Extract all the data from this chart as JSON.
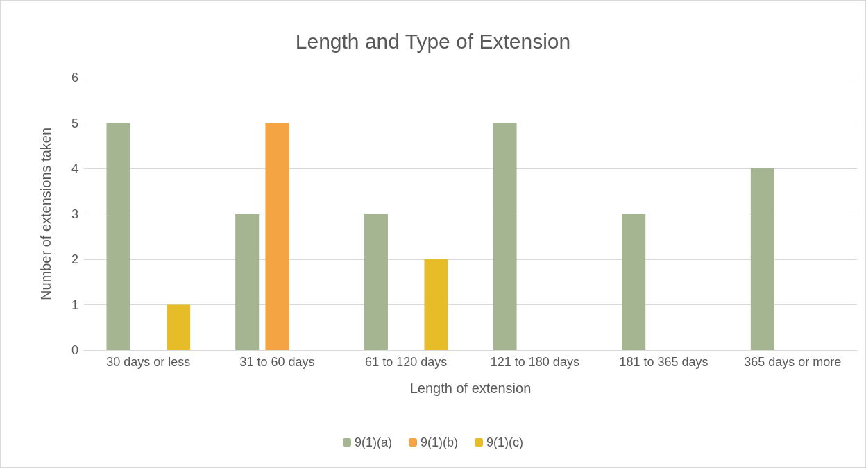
{
  "chart_data": {
    "type": "bar",
    "title": "Length and Type of Extension",
    "xlabel": "Length of extension",
    "ylabel": "Number of extensions taken",
    "categories": [
      "30 days or less",
      "31 to 60 days",
      "61 to 120 days",
      "121 to 180 days",
      "181 to 365 days",
      "365 days or more"
    ],
    "series": [
      {
        "name": "9(1)(a)",
        "color": "#a5b592",
        "values": [
          5,
          3,
          3,
          5,
          3,
          4
        ]
      },
      {
        "name": "9(1)(b)",
        "color": "#f4a443",
        "values": [
          0,
          5,
          0,
          0,
          0,
          0
        ]
      },
      {
        "name": "9(1)(c)",
        "color": "#e6bc28",
        "values": [
          1,
          0,
          2,
          0,
          0,
          0
        ]
      }
    ],
    "ylim": [
      0,
      6
    ],
    "yticks": [
      0,
      1,
      2,
      3,
      4,
      5,
      6
    ],
    "grid": "y",
    "legend": "bottom"
  }
}
